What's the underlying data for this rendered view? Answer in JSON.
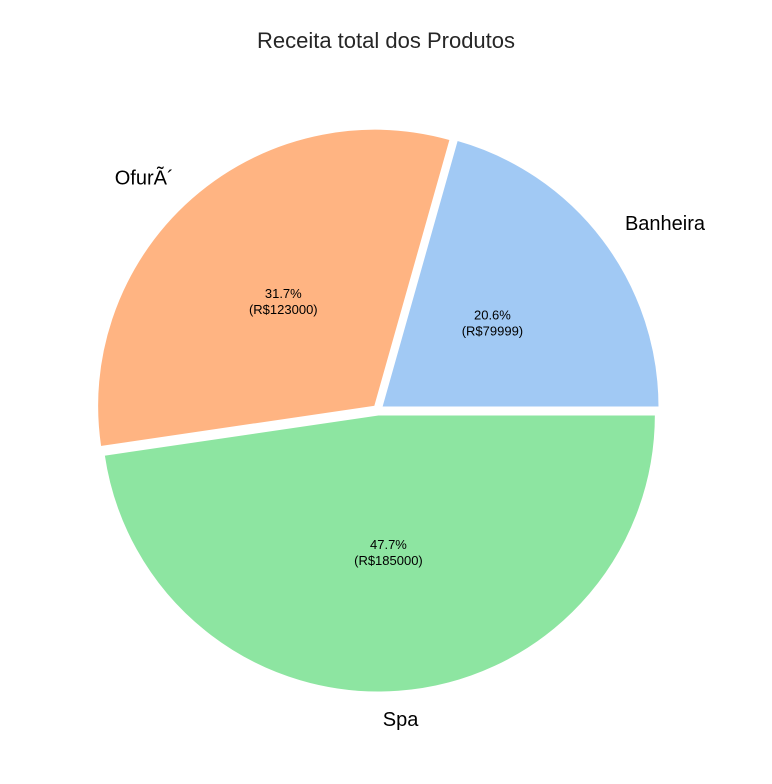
{
  "chart_data": {
    "type": "pie",
    "title": "Receita total dos Produtos",
    "categories": [
      "Banheira",
      "OfurÃ´",
      "Spa"
    ],
    "values": [
      79999,
      123000,
      185000
    ],
    "percent_labels": [
      "20.6%",
      "31.7%",
      "47.7%"
    ],
    "value_labels": [
      "(R$79999)",
      "(R$123000)",
      "(R$185000)"
    ],
    "colors": [
      "#a1c9f4",
      "#ffb482",
      "#8de5a1"
    ],
    "start_angle_deg": 0,
    "direction": "counterclockwise",
    "exploded": true,
    "legend": "none"
  }
}
